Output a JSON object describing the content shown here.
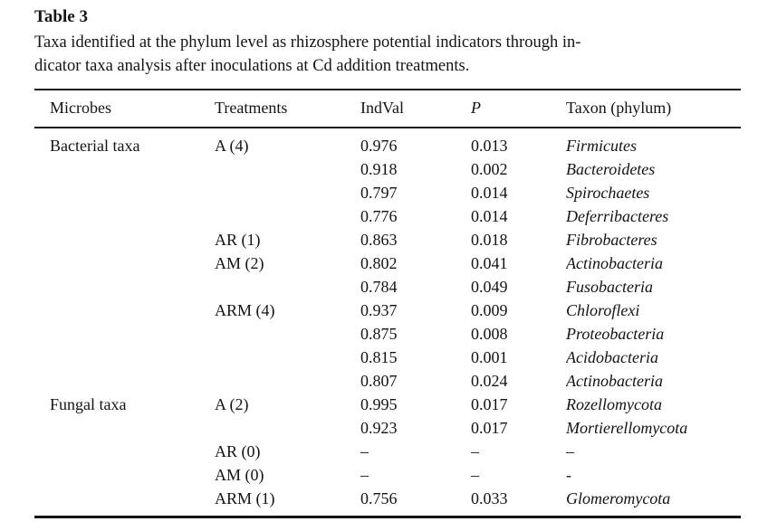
{
  "title": "Table 3",
  "caption": {
    "line1": "Taxa identified at the phylum level as rhizosphere potential indicators through in-",
    "line2": "dicator taxa analysis after inoculations at Cd addition treatments."
  },
  "table": {
    "columns": {
      "microbes": "Microbes",
      "treatments": "Treatments",
      "indval": "IndVal",
      "p": "P",
      "taxon": "Taxon (phylum)"
    },
    "rows": [
      {
        "microbes": "Bacterial taxa",
        "treatments": "A (4)",
        "indval": "0.976",
        "p": "0.013",
        "taxon": "Firmicutes"
      },
      {
        "microbes": "",
        "treatments": "",
        "indval": "0.918",
        "p": "0.002",
        "taxon": "Bacteroidetes"
      },
      {
        "microbes": "",
        "treatments": "",
        "indval": "0.797",
        "p": "0.014",
        "taxon": "Spirochaetes"
      },
      {
        "microbes": "",
        "treatments": "",
        "indval": "0.776",
        "p": "0.014",
        "taxon": "Deferribacteres"
      },
      {
        "microbes": "",
        "treatments": "AR (1)",
        "indval": "0.863",
        "p": "0.018",
        "taxon": "Fibrobacteres"
      },
      {
        "microbes": "",
        "treatments": "AM (2)",
        "indval": "0.802",
        "p": "0.041",
        "taxon": "Actinobacteria"
      },
      {
        "microbes": "",
        "treatments": "",
        "indval": "0.784",
        "p": "0.049",
        "taxon": "Fusobacteria"
      },
      {
        "microbes": "",
        "treatments": "ARM (4)",
        "indval": "0.937",
        "p": "0.009",
        "taxon": "Chloroflexi"
      },
      {
        "microbes": "",
        "treatments": "",
        "indval": "0.875",
        "p": "0.008",
        "taxon": "Proteobacteria"
      },
      {
        "microbes": "",
        "treatments": "",
        "indval": "0.815",
        "p": "0.001",
        "taxon": "Acidobacteria"
      },
      {
        "microbes": "",
        "treatments": "",
        "indval": "0.807",
        "p": "0.024",
        "taxon": "Actinobacteria"
      },
      {
        "microbes": "Fungal taxa",
        "treatments": "A (2)",
        "indval": "0.995",
        "p": "0.017",
        "taxon": "Rozellomycota"
      },
      {
        "microbes": "",
        "treatments": "",
        "indval": "0.923",
        "p": "0.017",
        "taxon": "Mortierellomycota"
      },
      {
        "microbes": "",
        "treatments": "AR (0)",
        "indval": "–",
        "p": "–",
        "taxon": "–"
      },
      {
        "microbes": "",
        "treatments": "AM (0)",
        "indval": "–",
        "p": "–",
        "taxon": "-"
      },
      {
        "microbes": "",
        "treatments": "ARM (1)",
        "indval": "0.756",
        "p": "0.033",
        "taxon": "Glomeromycota"
      }
    ]
  }
}
